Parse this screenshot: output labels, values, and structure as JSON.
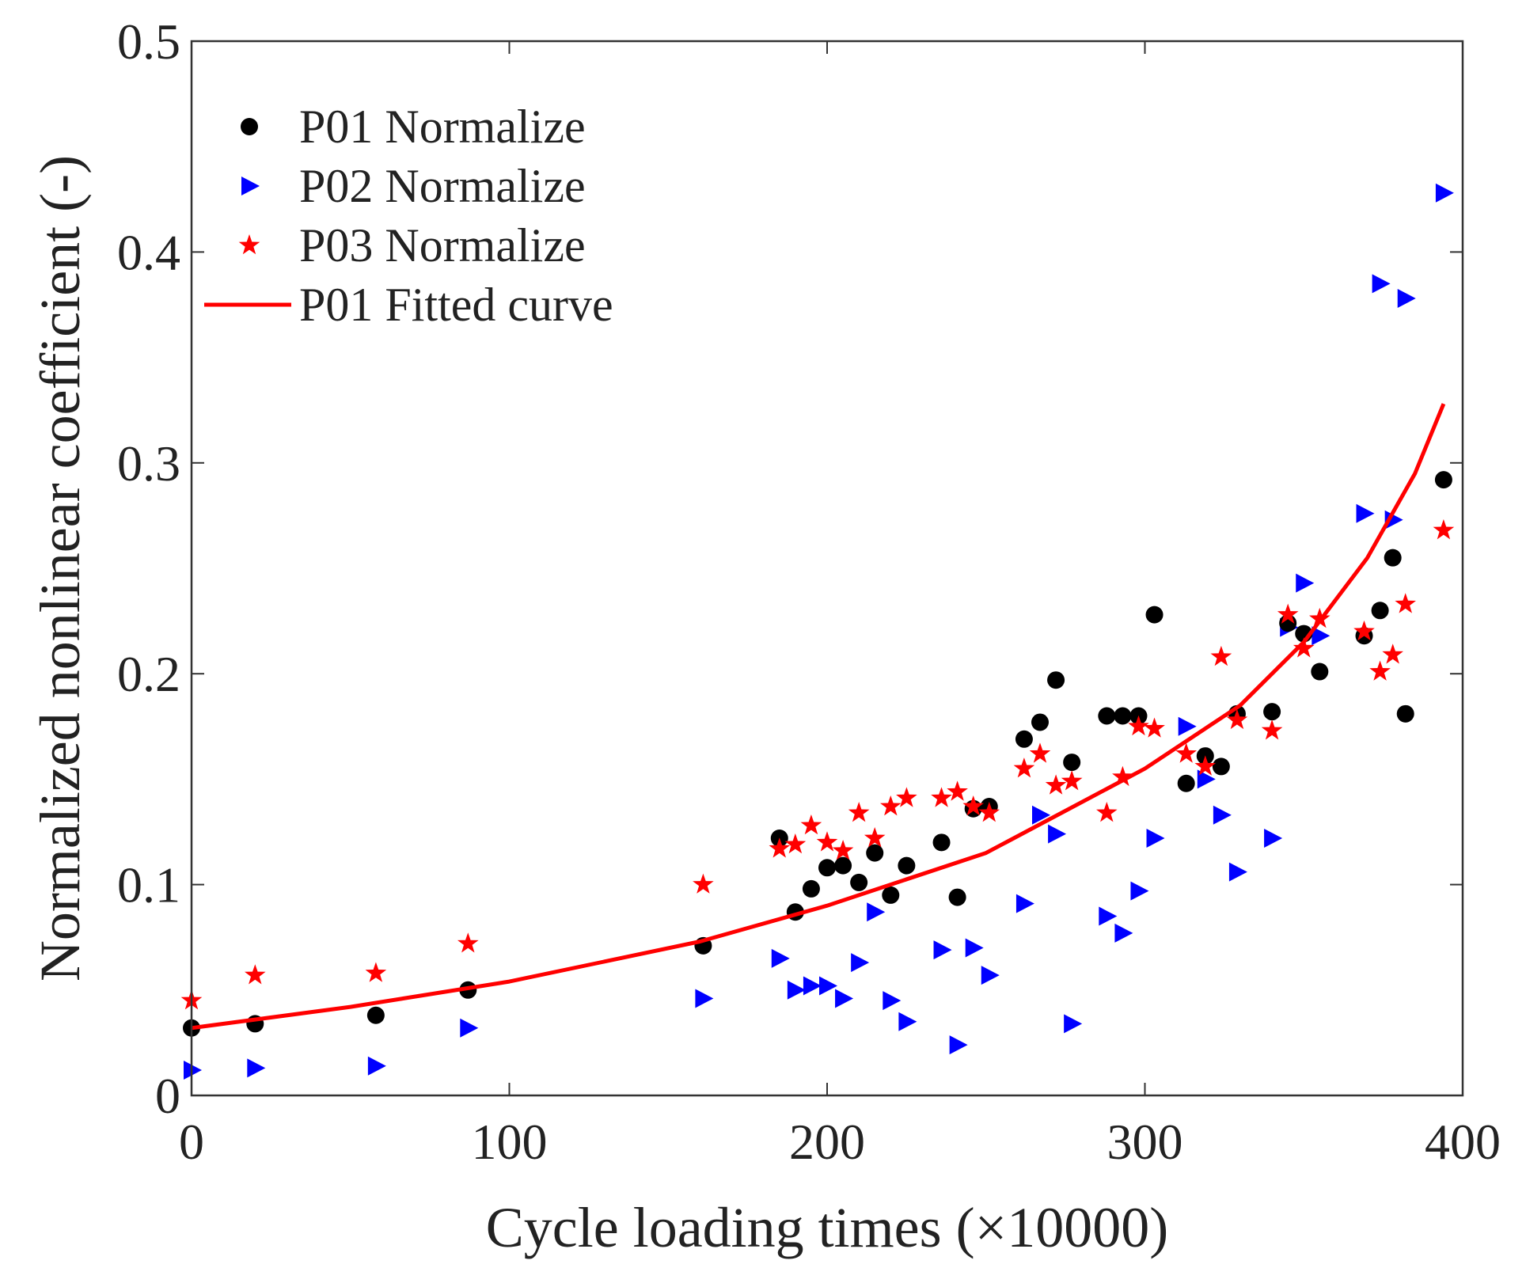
{
  "chart_data": {
    "type": "scatter",
    "title": "",
    "xlabel": "Cycle loading times (×10000)",
    "ylabel": "Normalized nonlinear coefficient (-)",
    "xlim": [
      0,
      400
    ],
    "ylim": [
      0,
      0.5
    ],
    "xticks": [
      0,
      100,
      200,
      300,
      400
    ],
    "xtick_labels": [
      "0",
      "100",
      "200",
      "300",
      "400"
    ],
    "yticks": [
      0,
      0.1,
      0.2,
      0.3,
      0.4,
      0.5
    ],
    "ytick_labels": [
      "0",
      "0.1",
      "0.2",
      "0.3",
      "0.4",
      "0.5"
    ],
    "grid": false,
    "legend_position": "top-left",
    "series": [
      {
        "name": "P01 Normalize",
        "marker": "circle",
        "color": "#000000",
        "x": [
          0,
          20,
          58,
          87,
          161,
          185,
          190,
          195,
          200,
          205,
          210,
          215,
          220,
          225,
          236,
          241,
          246,
          251,
          262,
          267,
          272,
          277,
          288,
          293,
          298,
          303,
          313,
          319,
          324,
          329,
          340,
          345,
          350,
          355,
          369,
          374,
          378,
          382,
          394
        ],
        "y": [
          0.032,
          0.034,
          0.038,
          0.05,
          0.071,
          0.122,
          0.087,
          0.098,
          0.108,
          0.109,
          0.101,
          0.115,
          0.095,
          0.109,
          0.12,
          0.094,
          0.136,
          0.137,
          0.169,
          0.177,
          0.197,
          0.158,
          0.18,
          0.18,
          0.18,
          0.228,
          0.148,
          0.161,
          0.156,
          0.181,
          0.182,
          0.224,
          0.219,
          0.201,
          0.218,
          0.23,
          0.255,
          0.181,
          0.292
        ]
      },
      {
        "name": "P02 Normalize",
        "marker": "triangle-right",
        "color": "#0000ff",
        "x": [
          0,
          20,
          58,
          87,
          161,
          185,
          190,
          195,
          200,
          205,
          210,
          215,
          220,
          225,
          236,
          241,
          246,
          251,
          262,
          267,
          272,
          277,
          288,
          293,
          298,
          303,
          313,
          319,
          324,
          329,
          340,
          345,
          350,
          355,
          369,
          374,
          378,
          382,
          394
        ],
        "y": [
          0.012,
          0.013,
          0.014,
          0.032,
          0.046,
          0.065,
          0.05,
          0.052,
          0.052,
          0.046,
          0.063,
          0.087,
          0.045,
          0.035,
          0.069,
          0.024,
          0.07,
          0.057,
          0.091,
          0.133,
          0.124,
          0.034,
          0.085,
          0.077,
          0.097,
          0.122,
          0.175,
          0.15,
          0.133,
          0.106,
          0.122,
          0.222,
          0.243,
          0.218,
          0.276,
          0.385,
          0.273,
          0.378,
          0.428
        ]
      },
      {
        "name": "P03 Normalize",
        "marker": "star",
        "color": "#ff0000",
        "x": [
          0,
          20,
          58,
          87,
          161,
          185,
          190,
          195,
          200,
          205,
          210,
          215,
          220,
          225,
          236,
          241,
          246,
          251,
          262,
          267,
          272,
          277,
          288,
          293,
          298,
          303,
          313,
          319,
          324,
          329,
          340,
          345,
          350,
          355,
          369,
          374,
          378,
          382,
          394
        ],
        "y": [
          0.045,
          0.057,
          0.058,
          0.072,
          0.1,
          0.117,
          0.119,
          0.128,
          0.12,
          0.116,
          0.134,
          0.122,
          0.137,
          0.141,
          0.141,
          0.144,
          0.137,
          0.134,
          0.155,
          0.162,
          0.147,
          0.149,
          0.134,
          0.151,
          0.175,
          0.174,
          0.162,
          0.156,
          0.208,
          0.178,
          0.173,
          0.228,
          0.212,
          0.226,
          0.22,
          0.201,
          0.209,
          0.233,
          0.268
        ]
      },
      {
        "name": "P01 Fitted curve",
        "marker": "line",
        "color": "#ff0000",
        "x": [
          0,
          50,
          100,
          160,
          200,
          250,
          300,
          330,
          350,
          370,
          385,
          394
        ],
        "y": [
          0.032,
          0.042,
          0.054,
          0.073,
          0.09,
          0.115,
          0.155,
          0.185,
          0.215,
          0.255,
          0.295,
          0.328
        ]
      }
    ]
  }
}
